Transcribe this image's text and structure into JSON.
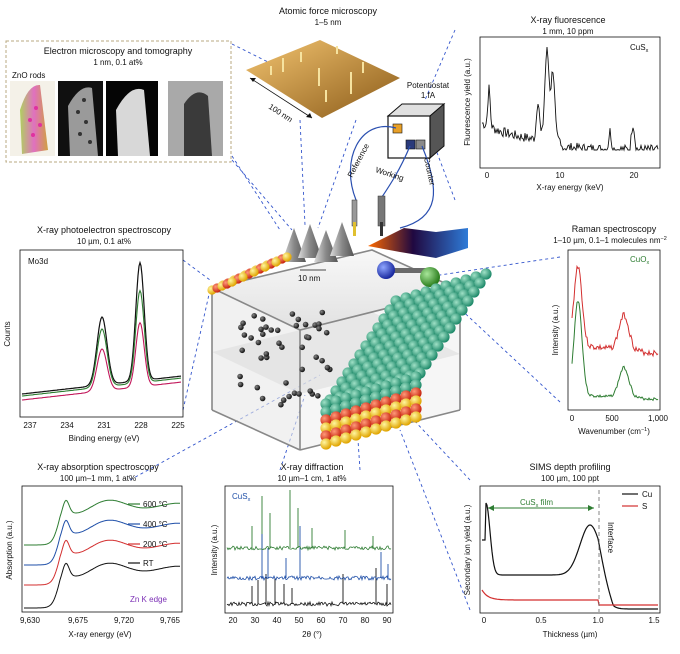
{
  "colors": {
    "green": "#2e7d32",
    "red": "#d32f2f",
    "blue": "#1f4fa8",
    "magenta": "#c2185b",
    "purple": "#7b2fb5",
    "dash": "#3355cc"
  },
  "em": {
    "title": "Electron microscopy and tomography",
    "spec": "1 nm, 0.1 at%",
    "rods": "ZnO rods"
  },
  "afm": {
    "title": "Atomic force microscopy",
    "spec": "1–5 nm",
    "scale": "100 nm"
  },
  "xrf": {
    "title": "X-ray fluorescence",
    "spec": "1 mm, 10 ppm",
    "label": "CuS",
    "label_sub": "x",
    "ylabel": "Fluorescence yield (a.u.)",
    "xlabel": "X-ray energy (keV)",
    "xticks": [
      "0",
      "10",
      "20"
    ]
  },
  "xps": {
    "title": "X-ray photoelectron spectroscopy",
    "spec": "10 µm, 0.1 at%",
    "label": "Mo3d",
    "ylabel": "Counts",
    "xlabel": "Binding energy (eV)",
    "xticks": [
      "237",
      "234",
      "231",
      "228",
      "225"
    ]
  },
  "raman": {
    "title": "Raman spectroscopy",
    "spec": "1–10 µm, 0.1–1 molecules nm",
    "spec_sup": "−2",
    "label": "CuO",
    "label_sub": "x",
    "ylabel": "Intensity (a.u.)",
    "xlabel": "Wavenumber (cm",
    "xlabel_sup": "−1",
    "xlabel_end": ")",
    "xticks": [
      "0",
      "500",
      "1,000"
    ]
  },
  "xas": {
    "title": "X-ray absorption spectroscopy",
    "spec": "100 µm–1 mm,  1 at%",
    "ylabel": "Absorption (a.u.)",
    "xlabel": "X-ray energy (eV)",
    "xticks": [
      "9,630",
      "9,675",
      "9,720",
      "9,765"
    ],
    "legend": [
      "600 °C",
      "400 °C",
      "200 °C",
      "RT"
    ],
    "edge": "Zn K edge"
  },
  "xrd": {
    "title": "X-ray diffraction",
    "spec": "10 µm–1 cm,  1 at%",
    "label": "CuS",
    "label_sub": "x",
    "ylabel": "Intensity (a.u.)",
    "xlabel": "2θ (°)",
    "xticks": [
      "20",
      "30",
      "40",
      "50",
      "60",
      "70",
      "80",
      "90"
    ]
  },
  "sims": {
    "title": "SIMS depth profiling",
    "spec": "100 µm, 100 ppt",
    "ylabel": "Secondary ion yield (a.u.)",
    "xlabel": "Thickness (µm)",
    "xticks": [
      "0",
      "0.5",
      "1.0",
      "1.5"
    ],
    "legend": [
      "Cu",
      "S"
    ],
    "film": "CuS",
    "film_sub": "x",
    "film_end": " film",
    "interface": "Interface"
  },
  "center": {
    "potentiostat": "Potentiostat",
    "potentiostat_spec": "1 fA",
    "reference": "Reference",
    "working": "Working",
    "counter": "Counter",
    "scale": "10 nm"
  }
}
